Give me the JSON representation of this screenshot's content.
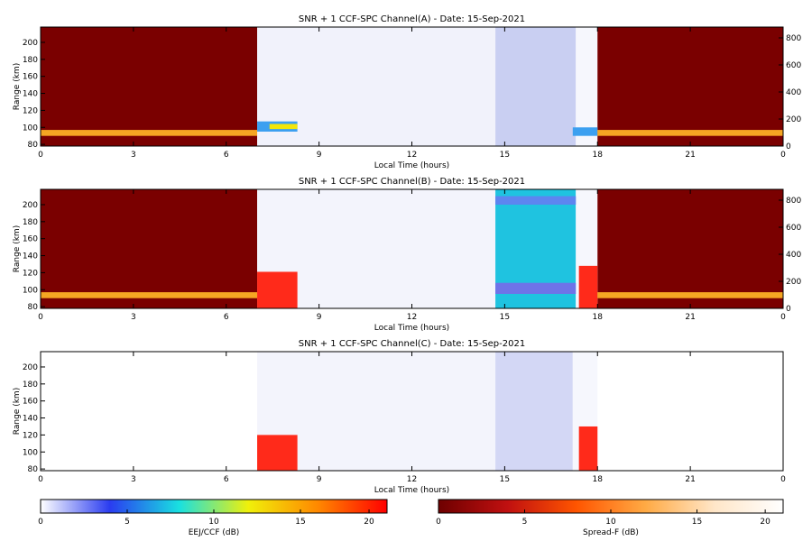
{
  "chart_data": [
    {
      "type": "heatmap",
      "title": "SNR + 1 CCF-SPC Channel(A) - Date: 15-Sep-2021",
      "xlabel": "Local Time (hours)",
      "ylabel": "Range (km)",
      "xlim": [
        0,
        24
      ],
      "ylim": [
        78,
        218
      ],
      "xticks": [
        "0",
        "3",
        "6",
        "9",
        "12",
        "15",
        "18",
        "21",
        "0"
      ],
      "yticks": [
        80,
        100,
        120,
        140,
        160,
        180,
        200
      ],
      "right_ylim": [
        0,
        880
      ],
      "right_yticks": [
        0,
        200,
        400,
        600,
        800
      ],
      "regions": [
        {
          "scale": "spreadf",
          "x0": 0,
          "x1": 7.0,
          "fill": "#7a0000"
        },
        {
          "scale": "ccf",
          "x0": 7.0,
          "x1": 14.7,
          "fill": "#f1f2fb"
        },
        {
          "scale": "ccf",
          "x0": 14.7,
          "x1": 17.3,
          "fill": "#c9cff2"
        },
        {
          "scale": "ccf",
          "x0": 17.3,
          "x1": 18.0,
          "fill": "#f6f7fd"
        },
        {
          "scale": "spreadf",
          "x0": 18.0,
          "x1": 24,
          "fill": "#7a0000"
        }
      ],
      "echoes": [
        {
          "x0": 0,
          "x1": 7.0,
          "y0": 90,
          "y1": 97,
          "fill": "#f5a623"
        },
        {
          "x0": 7.0,
          "x1": 8.3,
          "y0": 95,
          "y1": 107,
          "fill": "#3ca0f0"
        },
        {
          "x0": 7.4,
          "x1": 8.3,
          "y0": 98,
          "y1": 104,
          "fill": "#f2e60a"
        },
        {
          "x0": 17.2,
          "x1": 18.0,
          "y0": 90,
          "y1": 100,
          "fill": "#3ca0f0"
        },
        {
          "x0": 18.0,
          "x1": 24,
          "y0": 90,
          "y1": 97,
          "fill": "#f5a623"
        }
      ]
    },
    {
      "type": "heatmap",
      "title": "SNR + 1 CCF-SPC Channel(B) - Date: 15-Sep-2021",
      "xlabel": "Local Time (hours)",
      "ylabel": "Range (km)",
      "xlim": [
        0,
        24
      ],
      "ylim": [
        78,
        218
      ],
      "xticks": [
        "0",
        "3",
        "6",
        "9",
        "12",
        "15",
        "18",
        "21",
        "0"
      ],
      "yticks": [
        80,
        100,
        120,
        140,
        160,
        180,
        200
      ],
      "right_ylim": [
        0,
        880
      ],
      "right_yticks": [
        0,
        200,
        400,
        600,
        800
      ],
      "regions": [
        {
          "scale": "spreadf",
          "x0": 0,
          "x1": 7.0,
          "fill": "#7a0000"
        },
        {
          "scale": "ccf",
          "x0": 7.0,
          "x1": 14.7,
          "fill": "#f3f4fc"
        },
        {
          "scale": "ccf",
          "x0": 14.7,
          "x1": 17.3,
          "fill": "#1fc3e0"
        },
        {
          "scale": "ccf",
          "x0": 17.3,
          "x1": 18.0,
          "fill": "#f6f7fd"
        },
        {
          "scale": "spreadf",
          "x0": 18.0,
          "x1": 24,
          "fill": "#7a0000"
        }
      ],
      "echoes": [
        {
          "x0": 0,
          "x1": 7.0,
          "y0": 90,
          "y1": 97,
          "fill": "#f5a623"
        },
        {
          "x0": 7.0,
          "x1": 8.3,
          "y0": 78,
          "y1": 121,
          "fill": "#ff2a1a"
        },
        {
          "x0": 14.7,
          "x1": 17.3,
          "y0": 95,
          "y1": 108,
          "fill": "#6f73e8"
        },
        {
          "x0": 14.7,
          "x1": 17.3,
          "y0": 200,
          "y1": 210,
          "fill": "#5d85f0"
        },
        {
          "x0": 17.4,
          "x1": 18.0,
          "y0": 78,
          "y1": 128,
          "fill": "#ff2a1a"
        },
        {
          "x0": 18.0,
          "x1": 24,
          "y0": 90,
          "y1": 97,
          "fill": "#f5a623"
        }
      ]
    },
    {
      "type": "heatmap",
      "title": "SNR + 1 CCF-SPC Channel(C) - Date: 15-Sep-2021",
      "xlabel": "Local Time (hours)",
      "ylabel": "Range (km)",
      "xlim": [
        0,
        24
      ],
      "ylim": [
        78,
        218
      ],
      "xticks": [
        "0",
        "3",
        "6",
        "9",
        "12",
        "15",
        "18",
        "21",
        "0"
      ],
      "yticks": [
        80,
        100,
        120,
        140,
        160,
        180,
        200
      ],
      "regions": [
        {
          "scale": "ccf",
          "x0": 7.0,
          "x1": 14.7,
          "fill": "#f3f4fc"
        },
        {
          "scale": "ccf",
          "x0": 14.7,
          "x1": 17.2,
          "fill": "#d3d7f5"
        },
        {
          "scale": "ccf",
          "x0": 17.2,
          "x1": 18.0,
          "fill": "#f6f7fd"
        }
      ],
      "echoes": [
        {
          "x0": 7.0,
          "x1": 8.3,
          "y0": 78,
          "y1": 120,
          "fill": "#ff2a1a"
        },
        {
          "x0": 17.4,
          "x1": 18.0,
          "y0": 78,
          "y1": 130,
          "fill": "#ff2a1a"
        }
      ]
    }
  ],
  "colorbars": [
    {
      "label": "EEJ/CCF (dB)",
      "ticks": [
        "0",
        "5",
        "10",
        "15",
        "20"
      ],
      "stops": [
        "#ffffff",
        "#2a3cf0",
        "#19e0e0",
        "#f0f00a",
        "#ff8800",
        "#ff0000"
      ]
    },
    {
      "label": "Spread-F (dB)",
      "ticks": [
        "0",
        "5",
        "10",
        "15",
        "20"
      ],
      "stops": [
        "#6e0000",
        "#c01010",
        "#ff5500",
        "#ffaa44",
        "#ffe6c8",
        "#ffffff"
      ]
    }
  ]
}
